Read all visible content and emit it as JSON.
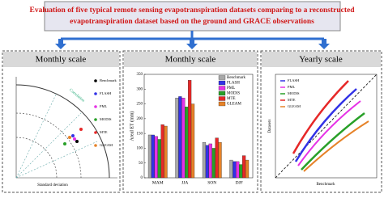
{
  "header": {
    "title_line1": "Evaluation of five typical remote sensing evapotranspiration datasets comparing to a reconstructed",
    "title_line2": "evapotranspiration dataset based on the ground and GRACE observations"
  },
  "panels": [
    {
      "title": "Monthly scale",
      "legend": [
        "Benchmark",
        "FLASH",
        "PML",
        "MODIS",
        "MTE",
        "GLEAM"
      ],
      "x_label": "Standard deviation",
      "arc_label": "Correlation"
    },
    {
      "title": "Monthly scale",
      "chart_data": {
        "type": "bar",
        "y_label": "Areal ET (mm)",
        "categories": [
          "MAM",
          "JJA",
          "SON",
          "DJF"
        ],
        "series": [
          {
            "name": "Benchmark",
            "color": "#a8a8a8",
            "values": [
              145,
              270,
              120,
              60
            ]
          },
          {
            "name": "FLASH",
            "color": "#3232e6",
            "values": [
              145,
              275,
              110,
              55
            ]
          },
          {
            "name": "PML",
            "color": "#e632e6",
            "values": [
              140,
              270,
              115,
              55
            ]
          },
          {
            "name": "MODIS",
            "color": "#28a028",
            "values": [
              130,
              240,
              100,
              45
            ]
          },
          {
            "name": "MTE",
            "color": "#e62828",
            "values": [
              180,
              330,
              135,
              75
            ]
          },
          {
            "name": "GLEAM",
            "color": "#e68228",
            "values": [
              175,
              250,
              120,
              60
            ]
          }
        ],
        "ylim": [
          0,
          350
        ],
        "yticks": [
          0,
          50,
          100,
          150,
          200,
          250,
          300,
          350
        ]
      }
    },
    {
      "title": "Yearly scale",
      "legend": [
        "FLASH",
        "PML",
        "MODIS",
        "MTE",
        "GLEAM"
      ],
      "x_label": "Benchmark",
      "y_label": "Datasets"
    }
  ]
}
